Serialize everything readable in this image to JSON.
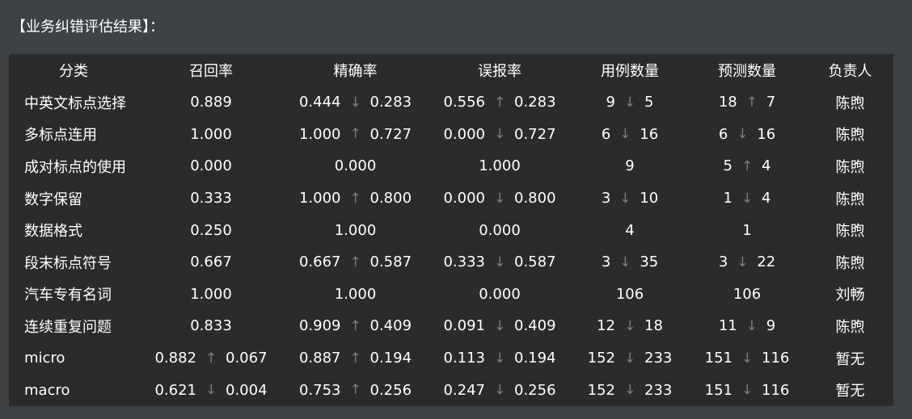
{
  "heading": "【业务纠错评估结果】：",
  "columns": [
    "分类",
    "召回率",
    "精确率",
    "误报率",
    "用例数量",
    "预测数量",
    "负责人"
  ],
  "rows": [
    {
      "category": "中英文标点选择",
      "recall": {
        "a": "0.889"
      },
      "precision": {
        "a": "0.444",
        "dir": "down",
        "b": "0.283"
      },
      "fpr": {
        "a": "0.556",
        "dir": "up",
        "b": "0.283"
      },
      "cases": {
        "a": "9",
        "dir": "down",
        "b": "5"
      },
      "pred": {
        "a": "18",
        "dir": "up",
        "b": "7"
      },
      "owner": "陈煦"
    },
    {
      "category": "多标点连用",
      "recall": {
        "a": "1.000"
      },
      "precision": {
        "a": "1.000",
        "dir": "up",
        "b": "0.727"
      },
      "fpr": {
        "a": "0.000",
        "dir": "down",
        "b": "0.727"
      },
      "cases": {
        "a": "6",
        "dir": "down",
        "b": "16"
      },
      "pred": {
        "a": "6",
        "dir": "down",
        "b": "16"
      },
      "owner": "陈煦"
    },
    {
      "category": "成对标点的使用",
      "recall": {
        "a": "0.000"
      },
      "precision": {
        "a": "0.000"
      },
      "fpr": {
        "a": "1.000"
      },
      "cases": {
        "a": "9"
      },
      "pred": {
        "a": "5",
        "dir": "up",
        "b": "4"
      },
      "owner": "陈煦"
    },
    {
      "category": "数字保留",
      "recall": {
        "a": "0.333"
      },
      "precision": {
        "a": "1.000",
        "dir": "up",
        "b": "0.800"
      },
      "fpr": {
        "a": "0.000",
        "dir": "down",
        "b": "0.800"
      },
      "cases": {
        "a": "3",
        "dir": "down",
        "b": "10"
      },
      "pred": {
        "a": "1",
        "dir": "down",
        "b": "4"
      },
      "owner": "陈煦"
    },
    {
      "category": "数据格式",
      "recall": {
        "a": "0.250"
      },
      "precision": {
        "a": "1.000"
      },
      "fpr": {
        "a": "0.000"
      },
      "cases": {
        "a": "4"
      },
      "pred": {
        "a": "1"
      },
      "owner": "陈煦"
    },
    {
      "category": "段末标点符号",
      "recall": {
        "a": "0.667"
      },
      "precision": {
        "a": "0.667",
        "dir": "up",
        "b": "0.587"
      },
      "fpr": {
        "a": "0.333",
        "dir": "down",
        "b": "0.587"
      },
      "cases": {
        "a": "3",
        "dir": "down",
        "b": "35"
      },
      "pred": {
        "a": "3",
        "dir": "down",
        "b": "22"
      },
      "owner": "陈煦"
    },
    {
      "category": "汽车专有名词",
      "recall": {
        "a": "1.000"
      },
      "precision": {
        "a": "1.000"
      },
      "fpr": {
        "a": "0.000"
      },
      "cases": {
        "a": "106"
      },
      "pred": {
        "a": "106"
      },
      "owner": "刘畅"
    },
    {
      "category": "连续重复问题",
      "recall": {
        "a": "0.833"
      },
      "precision": {
        "a": "0.909",
        "dir": "up",
        "b": "0.409"
      },
      "fpr": {
        "a": "0.091",
        "dir": "down",
        "b": "0.409"
      },
      "cases": {
        "a": "12",
        "dir": "down",
        "b": "18"
      },
      "pred": {
        "a": "11",
        "dir": "down",
        "b": "9"
      },
      "owner": "陈煦"
    },
    {
      "category": "micro",
      "recall": {
        "a": "0.882",
        "dir": "up",
        "b": "0.067"
      },
      "precision": {
        "a": "0.887",
        "dir": "up",
        "b": "0.194"
      },
      "fpr": {
        "a": "0.113",
        "dir": "down",
        "b": "0.194"
      },
      "cases": {
        "a": "152",
        "dir": "down",
        "b": "233"
      },
      "pred": {
        "a": "151",
        "dir": "down",
        "b": "116"
      },
      "owner": "暂无"
    },
    {
      "category": "macro",
      "recall": {
        "a": "0.621",
        "dir": "down",
        "b": "0.004"
      },
      "precision": {
        "a": "0.753",
        "dir": "up",
        "b": "0.256"
      },
      "fpr": {
        "a": "0.247",
        "dir": "down",
        "b": "0.256"
      },
      "cases": {
        "a": "152",
        "dir": "down",
        "b": "233"
      },
      "pred": {
        "a": "151",
        "dir": "down",
        "b": "116"
      },
      "owner": "暂无"
    }
  ],
  "colors": {
    "background": "#3d4245",
    "panel": "#2b2b2b",
    "text": "#ffffff",
    "arrow": "#7d7d7d"
  },
  "icons": {
    "up": "arrow-up-icon",
    "down": "arrow-down-icon"
  }
}
